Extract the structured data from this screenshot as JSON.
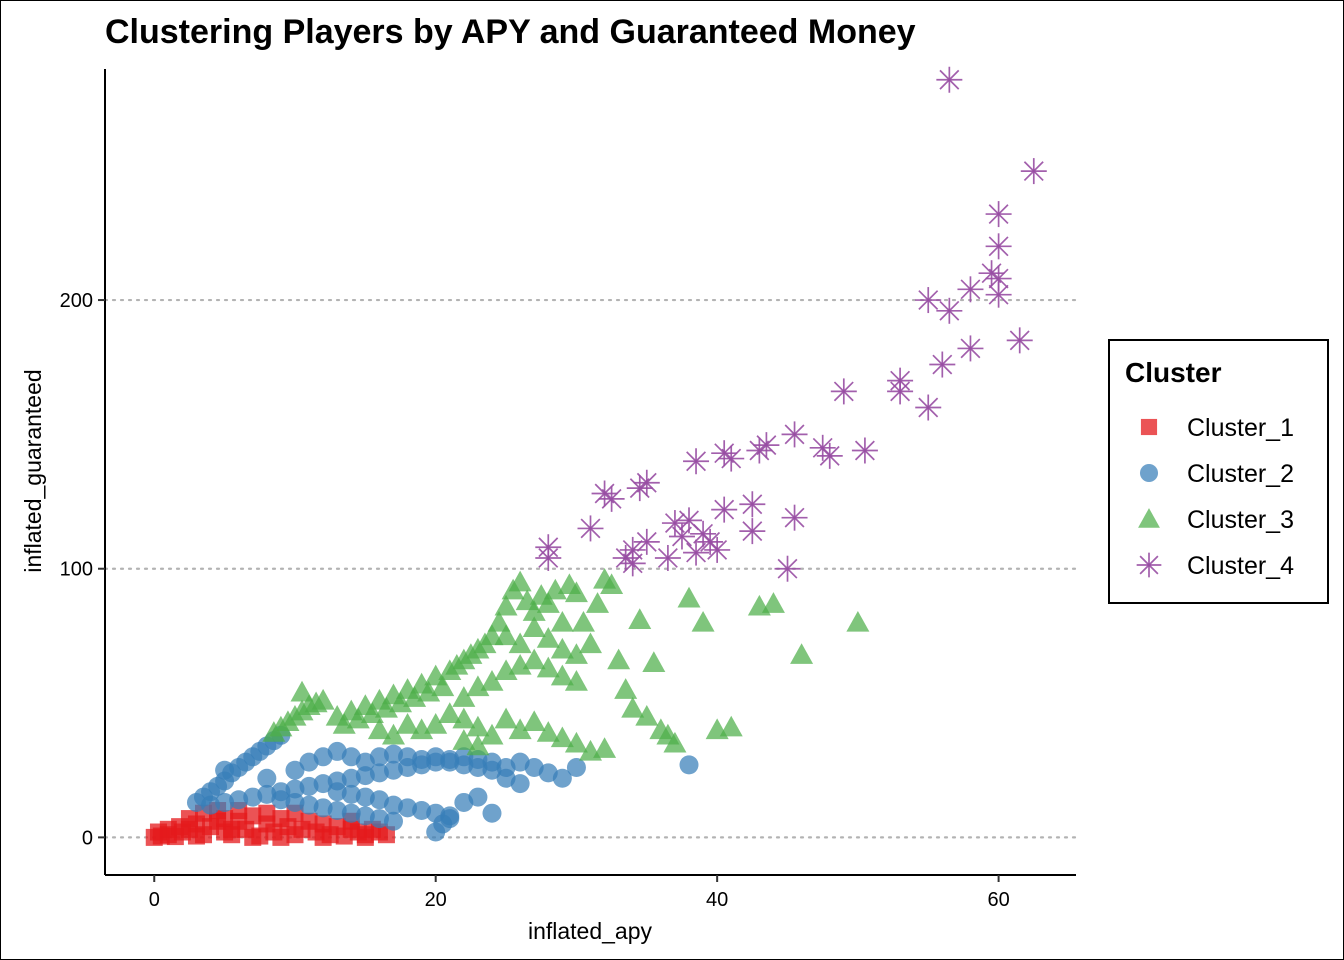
{
  "chart_data": {
    "type": "scatter",
    "title": "Clustering Players by APY and Guaranteed Money",
    "xlabel": "inflated_apy",
    "ylabel": "inflated_guaranteed",
    "xlim": [
      -3.5,
      65.5
    ],
    "ylim": [
      -14,
      286
    ],
    "x_ticks": [
      0,
      20,
      40,
      60
    ],
    "y_ticks": [
      0,
      100,
      200
    ],
    "grid": {
      "major_y": "dotted",
      "major_x": "none"
    },
    "legend": {
      "title": "Cluster",
      "position": "right"
    },
    "series": [
      {
        "name": "Cluster_1",
        "marker": "square",
        "color": "#E41A1C",
        "points": [
          [
            0,
            0
          ],
          [
            0.5,
            0.5
          ],
          [
            1,
            1
          ],
          [
            1.5,
            0.3
          ],
          [
            2,
            2
          ],
          [
            2.5,
            3
          ],
          [
            3,
            0.5
          ],
          [
            3,
            5
          ],
          [
            3.5,
            1
          ],
          [
            4,
            4
          ],
          [
            4.5,
            6
          ],
          [
            5,
            2
          ],
          [
            5,
            7
          ],
          [
            5.5,
            1
          ],
          [
            6,
            6
          ],
          [
            6.5,
            3
          ],
          [
            7,
            8
          ],
          [
            7.5,
            0.5
          ],
          [
            8,
            5
          ],
          [
            8.5,
            2
          ],
          [
            9,
            7
          ],
          [
            9.5,
            4
          ],
          [
            10,
            1
          ],
          [
            10,
            9
          ],
          [
            10.5,
            3
          ],
          [
            11,
            6
          ],
          [
            11.5,
            2
          ],
          [
            12,
            5
          ],
          [
            12.5,
            1
          ],
          [
            13,
            4
          ],
          [
            13.5,
            0.5
          ],
          [
            14,
            3
          ],
          [
            14,
            6
          ],
          [
            14.5,
            2
          ],
          [
            15,
            1
          ],
          [
            15.5,
            3
          ],
          [
            16,
            2
          ],
          [
            16.5,
            1
          ],
          [
            3.5,
            9
          ],
          [
            4.5,
            10
          ],
          [
            2.5,
            7
          ],
          [
            6,
            10
          ],
          [
            8,
            9
          ],
          [
            1,
            3
          ],
          [
            0.3,
            2
          ],
          [
            1.8,
            4
          ],
          [
            5.5,
            3
          ],
          [
            7,
            0
          ],
          [
            9,
            0
          ],
          [
            12,
            0
          ],
          [
            15,
            0
          ]
        ]
      },
      {
        "name": "Cluster_2",
        "marker": "circle",
        "color": "#377EB8",
        "points": [
          [
            3,
            13
          ],
          [
            3.5,
            15
          ],
          [
            4,
            17
          ],
          [
            4.5,
            19
          ],
          [
            5,
            21
          ],
          [
            5.5,
            24
          ],
          [
            6,
            26
          ],
          [
            6.5,
            28
          ],
          [
            7,
            30
          ],
          [
            7.5,
            32
          ],
          [
            8,
            34
          ],
          [
            8.5,
            36
          ],
          [
            9,
            38
          ],
          [
            4,
            12
          ],
          [
            5,
            13
          ],
          [
            6,
            14
          ],
          [
            7,
            15
          ],
          [
            8,
            16
          ],
          [
            9,
            17
          ],
          [
            10,
            18
          ],
          [
            11,
            19
          ],
          [
            12,
            20
          ],
          [
            13,
            21
          ],
          [
            14,
            22
          ],
          [
            15,
            23
          ],
          [
            16,
            24
          ],
          [
            17,
            25
          ],
          [
            18,
            26
          ],
          [
            19,
            27
          ],
          [
            20,
            28
          ],
          [
            21,
            28
          ],
          [
            22,
            27
          ],
          [
            23,
            26
          ],
          [
            24,
            25
          ],
          [
            25,
            26
          ],
          [
            26,
            28
          ],
          [
            5,
            25
          ],
          [
            8,
            22
          ],
          [
            10,
            25
          ],
          [
            11,
            28
          ],
          [
            12,
            30
          ],
          [
            13,
            32
          ],
          [
            14,
            30
          ],
          [
            15,
            28
          ],
          [
            16,
            30
          ],
          [
            17,
            31
          ],
          [
            18,
            30
          ],
          [
            19,
            29
          ],
          [
            20,
            30
          ],
          [
            21,
            29
          ],
          [
            22,
            30
          ],
          [
            23,
            29
          ],
          [
            24,
            28
          ],
          [
            13,
            17
          ],
          [
            14,
            16
          ],
          [
            15,
            15
          ],
          [
            16,
            14
          ],
          [
            17,
            12
          ],
          [
            18,
            11
          ],
          [
            19,
            10
          ],
          [
            20,
            9
          ],
          [
            21,
            8
          ],
          [
            20.5,
            5
          ],
          [
            20,
            2
          ],
          [
            21,
            7
          ],
          [
            22,
            13
          ],
          [
            23,
            15
          ],
          [
            24,
            9
          ],
          [
            25,
            22
          ],
          [
            26,
            20
          ],
          [
            27,
            26
          ],
          [
            28,
            24
          ],
          [
            29,
            22
          ],
          [
            30,
            26
          ],
          [
            38,
            27
          ],
          [
            9,
            14
          ],
          [
            10,
            13
          ],
          [
            11,
            12
          ],
          [
            12,
            11
          ],
          [
            13,
            10
          ],
          [
            14,
            9
          ],
          [
            15,
            8
          ],
          [
            16,
            7
          ],
          [
            17,
            6
          ]
        ]
      },
      {
        "name": "Cluster_3",
        "marker": "triangle",
        "color": "#4DAF4A",
        "points": [
          [
            8.5,
            39
          ],
          [
            9,
            41
          ],
          [
            9.5,
            43
          ],
          [
            10,
            45
          ],
          [
            10.5,
            47
          ],
          [
            11,
            49
          ],
          [
            11.5,
            50
          ],
          [
            12,
            51
          ],
          [
            10.5,
            54
          ],
          [
            13,
            45
          ],
          [
            13.5,
            42
          ],
          [
            14,
            47
          ],
          [
            14.5,
            44
          ],
          [
            15,
            49
          ],
          [
            15.5,
            46
          ],
          [
            16,
            51
          ],
          [
            16.5,
            48
          ],
          [
            17,
            53
          ],
          [
            17.5,
            50
          ],
          [
            18,
            55
          ],
          [
            18.5,
            52
          ],
          [
            19,
            57
          ],
          [
            19.5,
            54
          ],
          [
            20,
            60
          ],
          [
            20.5,
            56
          ],
          [
            21,
            62
          ],
          [
            21.5,
            64
          ],
          [
            22,
            66
          ],
          [
            22.5,
            68
          ],
          [
            23,
            70
          ],
          [
            23.5,
            72
          ],
          [
            24,
            75
          ],
          [
            24.5,
            80
          ],
          [
            25,
            86
          ],
          [
            25.5,
            92
          ],
          [
            26,
            95
          ],
          [
            26.5,
            88
          ],
          [
            27,
            84
          ],
          [
            27.5,
            90
          ],
          [
            28,
            87
          ],
          [
            28.5,
            92
          ],
          [
            29,
            80
          ],
          [
            29.5,
            94
          ],
          [
            30,
            91
          ],
          [
            30.5,
            80
          ],
          [
            31,
            72
          ],
          [
            31.5,
            87
          ],
          [
            32,
            96
          ],
          [
            32.5,
            94
          ],
          [
            33,
            66
          ],
          [
            33.5,
            55
          ],
          [
            34,
            48
          ],
          [
            34.5,
            81
          ],
          [
            35,
            45
          ],
          [
            35.5,
            65
          ],
          [
            36,
            40
          ],
          [
            36.5,
            38
          ],
          [
            37,
            35
          ],
          [
            38,
            89
          ],
          [
            39,
            80
          ],
          [
            40,
            40
          ],
          [
            41,
            41
          ],
          [
            43,
            86
          ],
          [
            44,
            87
          ],
          [
            46,
            68
          ],
          [
            50,
            80
          ],
          [
            20,
            42
          ],
          [
            21,
            46
          ],
          [
            22,
            44
          ],
          [
            23,
            41
          ],
          [
            24,
            38
          ],
          [
            25,
            44
          ],
          [
            26,
            40
          ],
          [
            27,
            43
          ],
          [
            28,
            39
          ],
          [
            29,
            37
          ],
          [
            30,
            35
          ],
          [
            31,
            32
          ],
          [
            32,
            33
          ],
          [
            16,
            40
          ],
          [
            17,
            38
          ],
          [
            18,
            42
          ],
          [
            19,
            40
          ],
          [
            22,
            52
          ],
          [
            23,
            56
          ],
          [
            24,
            58
          ],
          [
            25,
            62
          ],
          [
            26,
            64
          ],
          [
            27,
            66
          ],
          [
            28,
            63
          ],
          [
            29,
            60
          ],
          [
            30,
            58
          ],
          [
            25,
            75
          ],
          [
            26,
            72
          ],
          [
            27,
            78
          ],
          [
            28,
            74
          ],
          [
            29,
            70
          ],
          [
            30,
            68
          ],
          [
            22,
            36
          ],
          [
            23,
            34
          ]
        ]
      },
      {
        "name": "Cluster_4",
        "marker": "asterisk",
        "color": "#984EA3",
        "points": [
          [
            56.5,
            282
          ],
          [
            62.5,
            248
          ],
          [
            60,
            232
          ],
          [
            60,
            220
          ],
          [
            59.5,
            210
          ],
          [
            60,
            208
          ],
          [
            60,
            202
          ],
          [
            58,
            204
          ],
          [
            56.5,
            196
          ],
          [
            55,
            200
          ],
          [
            58,
            182
          ],
          [
            61.5,
            185
          ],
          [
            56,
            176
          ],
          [
            53,
            170
          ],
          [
            53,
            166
          ],
          [
            55,
            160
          ],
          [
            49,
            166
          ],
          [
            43.5,
            146
          ],
          [
            43,
            144
          ],
          [
            45.5,
            150
          ],
          [
            47.5,
            145
          ],
          [
            48,
            142
          ],
          [
            50.5,
            144
          ],
          [
            40.5,
            143
          ],
          [
            41,
            141
          ],
          [
            38.5,
            140
          ],
          [
            35,
            132
          ],
          [
            34.5,
            130
          ],
          [
            32,
            128
          ],
          [
            32.5,
            126
          ],
          [
            31,
            115
          ],
          [
            37,
            117
          ],
          [
            38,
            118
          ],
          [
            39,
            113
          ],
          [
            39.5,
            110
          ],
          [
            40,
            107
          ],
          [
            38.5,
            106
          ],
          [
            37.5,
            112
          ],
          [
            36.5,
            104
          ],
          [
            35,
            110
          ],
          [
            34,
            107
          ],
          [
            34,
            102
          ],
          [
            33.5,
            104
          ],
          [
            40.5,
            122
          ],
          [
            42.5,
            124
          ],
          [
            42.5,
            114
          ],
          [
            45.5,
            119
          ],
          [
            45,
            100
          ],
          [
            28,
            104
          ],
          [
            28,
            108
          ]
        ]
      }
    ]
  }
}
